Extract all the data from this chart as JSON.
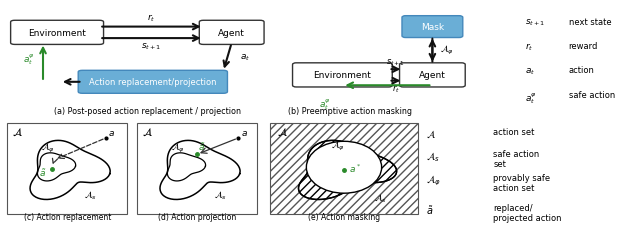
{
  "caption_a": "(a) Post-posed action replacement / projection",
  "caption_b": "(b) Preemptive action masking",
  "caption_c": "(c) Action replacement",
  "caption_d": "(d) Action projection",
  "caption_e": "(e) Action masking",
  "green": "#2a8a2a",
  "blue_box": "#6aaed6",
  "blue_edge": "#4488bb",
  "black": "#111111",
  "gray": "#888888",
  "legend_top": [
    [
      "$s_{t+1}$",
      "next state"
    ],
    [
      "$r_t$",
      "reward"
    ],
    [
      "$a_t$",
      "action"
    ],
    [
      "$a_t^{\\varphi}$",
      "safe action"
    ]
  ],
  "legend_bot": [
    [
      "$\\mathcal{A}$",
      "action set"
    ],
    [
      "$\\mathcal{A}_s$",
      "safe action\nset"
    ],
    [
      "$\\mathcal{A}_{\\varphi}$",
      "provably safe\naction set"
    ],
    [
      "$\\tilde{a}$",
      "replaced/\nprojected action"
    ]
  ]
}
